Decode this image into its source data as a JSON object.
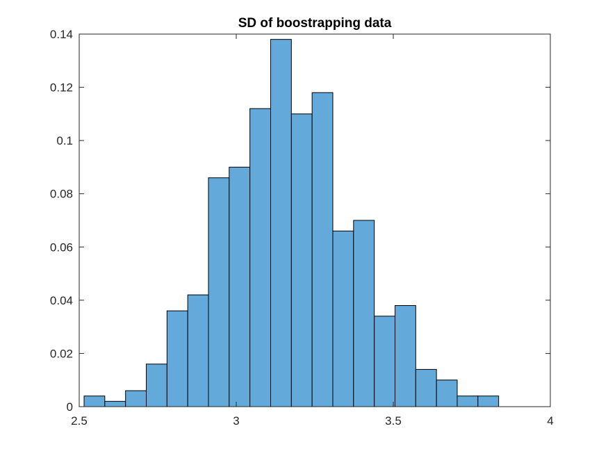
{
  "chart_data": {
    "type": "bar",
    "title": "SD of boostrapping data",
    "xlabel": "",
    "ylabel": "",
    "xlim": [
      2.5,
      4
    ],
    "ylim": [
      0,
      0.14
    ],
    "xticks": [
      2.5,
      3,
      3.5,
      4
    ],
    "xtick_labels": [
      "2.5",
      "3",
      "3.5",
      "4"
    ],
    "yticks": [
      0,
      0.02,
      0.04,
      0.06,
      0.08,
      0.1,
      0.12,
      0.14
    ],
    "ytick_labels": [
      "0",
      "0.02",
      "0.04",
      "0.06",
      "0.08",
      "0.1",
      "0.12",
      "0.14"
    ],
    "bin_edges": [
      2.5155,
      2.5815,
      2.6475,
      2.7135,
      2.7795,
      2.8455,
      2.9115,
      2.9775,
      3.0435,
      3.1095,
      3.1755,
      3.2415,
      3.3075,
      3.3735,
      3.4395,
      3.5055,
      3.5715,
      3.6375,
      3.7035,
      3.7695,
      3.8355
    ],
    "values": [
      0.004,
      0.002,
      0.006,
      0.016,
      0.036,
      0.042,
      0.086,
      0.09,
      0.112,
      0.138,
      0.11,
      0.118,
      0.066,
      0.07,
      0.034,
      0.038,
      0.014,
      0.01,
      0.004,
      0.004
    ],
    "grid": false,
    "legend": "none",
    "colors": {
      "bar_fill": "#63a9d9",
      "bar_edge": "#000000",
      "axis": "#262626"
    }
  }
}
